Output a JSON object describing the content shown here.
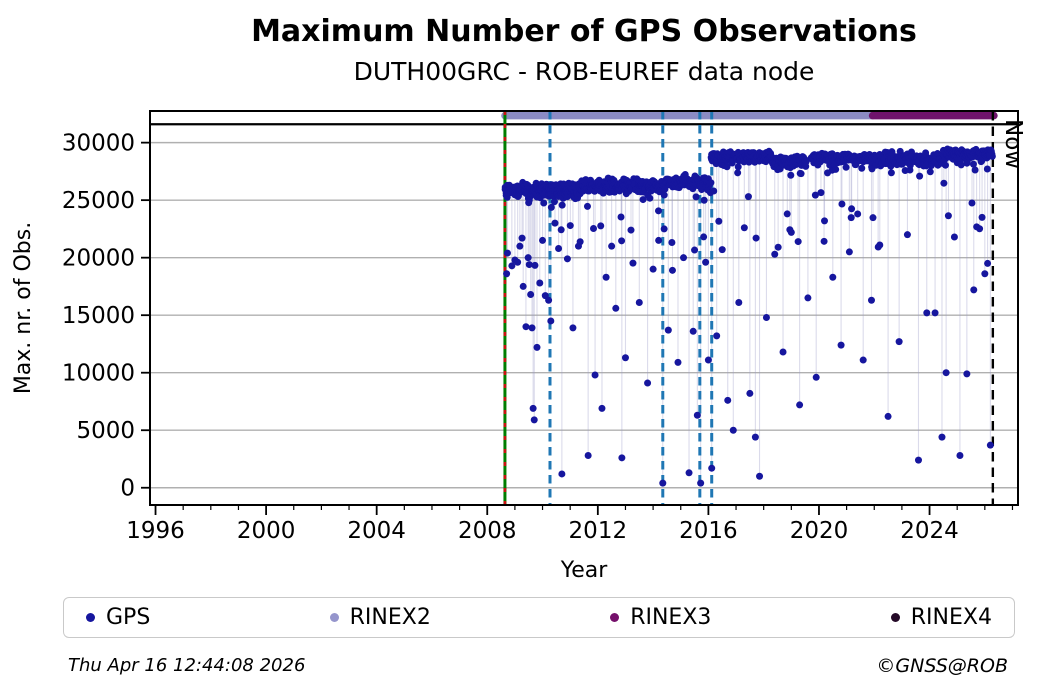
{
  "title": "Maximum Number of GPS Observations",
  "subtitle": "DUTH00GRC - ROB-EUREF data node",
  "footer": {
    "timestamp": "Thu Apr 16 12:44:08 2026",
    "credit": "©GNSS@ROB"
  },
  "legend": {
    "items": [
      {
        "label": "GPS",
        "color": "#16169e"
      },
      {
        "label": "RINEX2",
        "color": "#9595cc"
      },
      {
        "label": "RINEX3",
        "color": "#75106b"
      },
      {
        "label": "RINEX4",
        "color": "#250a28"
      }
    ]
  },
  "chart_data": {
    "type": "scatter",
    "title": "Maximum Number of GPS Observations",
    "subtitle": "DUTH00GRC - ROB-EUREF data node",
    "xlabel": "Year",
    "ylabel": "Max. nr. of Obs.",
    "xlim": [
      1995.8,
      2027.2
    ],
    "ylim": [
      -1500,
      32750
    ],
    "x_major_ticks": [
      1996,
      2000,
      2004,
      2008,
      2012,
      2016,
      2020,
      2024
    ],
    "x_minor_step": 1,
    "y_ticks": [
      0,
      5000,
      10000,
      15000,
      20000,
      25000,
      30000
    ],
    "grid": "horizontal",
    "grid_color": "#b0b0b0",
    "max_line": {
      "value": 31600,
      "color": "#000000"
    },
    "coverage_bars": [
      {
        "name": "RINEX2",
        "start": 2008.64,
        "end": 2021.94,
        "value": 32350,
        "color": "#8b8bc3"
      },
      {
        "name": "RINEX3",
        "start": 2021.94,
        "end": 2026.33,
        "value": 32350,
        "color": "#6f136c"
      }
    ],
    "event_lines": {
      "green_red_line": {
        "year": 2008.64,
        "green": "#007d00",
        "red": "#cc1111"
      },
      "blue_dashed_years": [
        2010.27,
        2014.35,
        2015.69,
        2016.12
      ],
      "blue": "#1f77b4"
    },
    "now_line": {
      "year": 2026.29,
      "label": "Now",
      "color": "#000000"
    },
    "series": [
      {
        "name": "GPS",
        "color": "#16169e",
        "stem_color": "#9a9ac8",
        "band_segments": [
          [
            2008.65,
            2009.6,
            25900,
            650
          ],
          [
            2009.6,
            2011.4,
            25850,
            600
          ],
          [
            2011.4,
            2014.35,
            26300,
            600
          ],
          [
            2014.35,
            2016.1,
            26550,
            650
          ],
          [
            2016.1,
            2018.3,
            28750,
            480
          ],
          [
            2018.3,
            2019.55,
            28350,
            550
          ],
          [
            2019.72,
            2021.9,
            28700,
            480
          ],
          [
            2021.9,
            2024.5,
            28600,
            650
          ],
          [
            2024.5,
            2026.29,
            29050,
            480
          ]
        ],
        "outliers": [
          [
            2008.7,
            18600
          ],
          [
            2008.73,
            20400
          ],
          [
            2009.0,
            19800
          ],
          [
            2009.1,
            19600
          ],
          [
            2009.18,
            21000
          ],
          [
            2009.3,
            17500
          ],
          [
            2009.4,
            14000
          ],
          [
            2009.48,
            20000
          ],
          [
            2009.52,
            19400
          ],
          [
            2009.57,
            16800
          ],
          [
            2009.62,
            13900
          ],
          [
            2009.66,
            6900
          ],
          [
            2009.7,
            5900
          ],
          [
            2009.8,
            12200
          ],
          [
            2009.9,
            17800
          ],
          [
            2010.0,
            21500
          ],
          [
            2010.1,
            16700
          ],
          [
            2010.22,
            16300
          ],
          [
            2010.3,
            14500
          ],
          [
            2010.45,
            23000
          ],
          [
            2010.58,
            20800
          ],
          [
            2010.7,
            1200
          ],
          [
            2010.9,
            19900
          ],
          [
            2011.1,
            13900
          ],
          [
            2011.3,
            21000
          ],
          [
            2011.65,
            2800
          ],
          [
            2011.9,
            9800
          ],
          [
            2012.15,
            6900
          ],
          [
            2012.3,
            18300
          ],
          [
            2012.5,
            21000
          ],
          [
            2012.65,
            15600
          ],
          [
            2012.87,
            2600
          ],
          [
            2013.0,
            11300
          ],
          [
            2013.2,
            22400
          ],
          [
            2013.5,
            16100
          ],
          [
            2013.8,
            9100
          ],
          [
            2014.0,
            19000
          ],
          [
            2014.2,
            21500
          ],
          [
            2014.35,
            400
          ],
          [
            2014.4,
            22500
          ],
          [
            2014.55,
            13700
          ],
          [
            2014.7,
            18900
          ],
          [
            2014.9,
            10900
          ],
          [
            2015.1,
            20000
          ],
          [
            2015.3,
            1300
          ],
          [
            2015.45,
            13600
          ],
          [
            2015.6,
            6300
          ],
          [
            2015.72,
            400
          ],
          [
            2015.9,
            19600
          ],
          [
            2016.0,
            11100
          ],
          [
            2016.12,
            1700
          ],
          [
            2016.3,
            13200
          ],
          [
            2016.5,
            20700
          ],
          [
            2016.7,
            7600
          ],
          [
            2016.9,
            5000
          ],
          [
            2017.1,
            16100
          ],
          [
            2017.3,
            22600
          ],
          [
            2017.5,
            8200
          ],
          [
            2017.7,
            4400
          ],
          [
            2017.85,
            1000
          ],
          [
            2018.1,
            14800
          ],
          [
            2018.4,
            20300
          ],
          [
            2018.7,
            11800
          ],
          [
            2019.0,
            22200
          ],
          [
            2019.3,
            7200
          ],
          [
            2019.6,
            16500
          ],
          [
            2019.9,
            9600
          ],
          [
            2020.2,
            23200
          ],
          [
            2020.5,
            18300
          ],
          [
            2020.8,
            12400
          ],
          [
            2021.1,
            20500
          ],
          [
            2021.4,
            23800
          ],
          [
            2021.6,
            11100
          ],
          [
            2021.9,
            16300
          ],
          [
            2022.2,
            21100
          ],
          [
            2022.5,
            6200
          ],
          [
            2022.9,
            12700
          ],
          [
            2023.2,
            22000
          ],
          [
            2023.6,
            2400
          ],
          [
            2023.9,
            15200
          ],
          [
            2024.2,
            15200
          ],
          [
            2024.45,
            4400
          ],
          [
            2024.6,
            10000
          ],
          [
            2024.9,
            21800
          ],
          [
            2025.1,
            2800
          ],
          [
            2025.35,
            9900
          ],
          [
            2025.6,
            17200
          ],
          [
            2025.9,
            23500
          ],
          [
            2026.0,
            18600
          ],
          [
            2026.1,
            19500
          ],
          [
            2026.2,
            3700
          ]
        ]
      }
    ]
  }
}
